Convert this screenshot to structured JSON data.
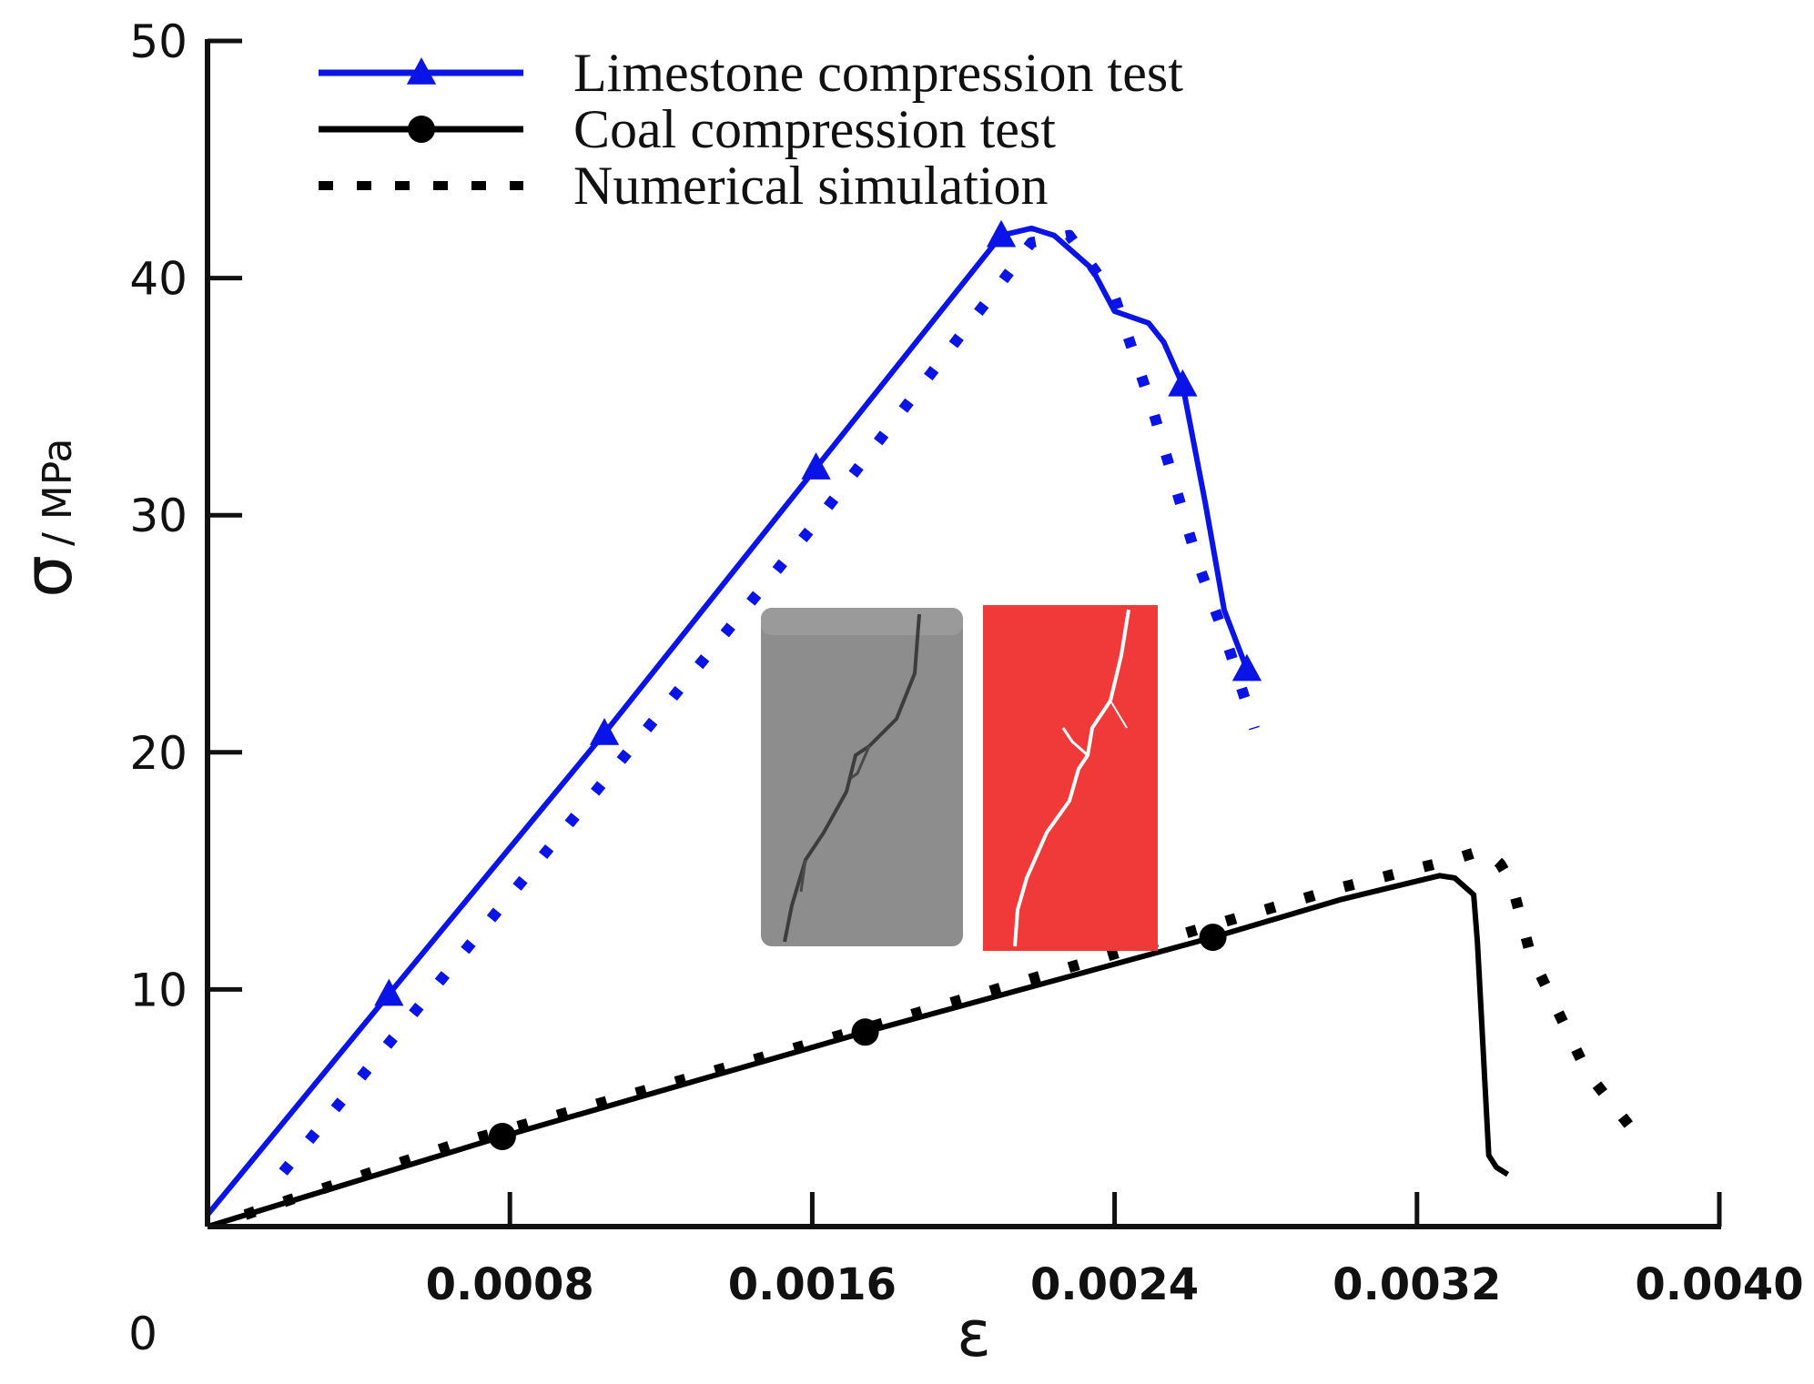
{
  "chart_data": {
    "type": "line",
    "xlabel": "ε",
    "ylabel_symbol": "σ",
    "ylabel_unit": "/ MPa",
    "origin_label": "0",
    "xlim": [
      0,
      0.004
    ],
    "ylim": [
      0,
      50
    ],
    "x_ticks": [
      0.0008,
      0.0016,
      0.0024,
      0.0032,
      0.004
    ],
    "x_tick_labels": [
      "0.0008",
      "0.0016",
      "0.0024",
      "0.0032",
      "0.0040"
    ],
    "y_ticks": [
      10,
      20,
      30,
      40,
      50
    ],
    "y_tick_labels": [
      "10",
      "20",
      "30",
      "40",
      "50"
    ],
    "legend": {
      "position": "top-left",
      "entries": [
        {
          "label": "Limestone compression test",
          "color": "#0a14e6",
          "style": "solid",
          "marker": "triangle"
        },
        {
          "label": "Coal compression test",
          "color": "#000000",
          "style": "solid",
          "marker": "circle"
        },
        {
          "label": "Numerical simulation",
          "color": "#000000",
          "style": "dotted",
          "marker": "none"
        }
      ]
    },
    "series": [
      {
        "name": "Limestone compression test",
        "color": "#0a14e6",
        "style": "solid",
        "marker": "triangle",
        "x": [
          0,
          0.00048,
          0.00105,
          0.00161,
          0.0021,
          0.00218,
          0.00224,
          0.00234,
          0.0024,
          0.00249,
          0.00253,
          0.00258,
          0.00264,
          0.00269,
          0.00275
        ],
        "y": [
          0.5,
          9.8,
          20.8,
          32,
          41.8,
          42.1,
          41.8,
          40.4,
          38.6,
          38.1,
          37.3,
          35.5,
          30.5,
          26,
          23.5
        ],
        "marker_x": [
          0.00048,
          0.00105,
          0.00161,
          0.0021,
          0.00258,
          0.00275
        ],
        "marker_y": [
          9.8,
          20.8,
          32,
          41.8,
          35.5,
          23.5
        ]
      },
      {
        "name": "Limestone numerical simulation",
        "color": "#0a14e6",
        "style": "dotted",
        "marker": "none",
        "x": [
          0.0002,
          0.00105,
          0.0016,
          0.0021,
          0.00218,
          0.00228,
          0.0024,
          0.0025,
          0.00262,
          0.0027,
          0.00277
        ],
        "y": [
          2.3,
          18.8,
          29.5,
          39.8,
          41.5,
          41.8,
          39.2,
          34.5,
          28,
          24.5,
          21
        ],
        "marker_x": [],
        "marker_y": []
      },
      {
        "name": "Coal compression test",
        "color": "#000000",
        "style": "solid",
        "marker": "circle",
        "x": [
          0,
          0.00078,
          0.00174,
          0.00266,
          0.003,
          0.00326,
          0.0033,
          0.00335,
          0.00336,
          0.00337,
          0.00338,
          0.00339,
          0.00341,
          0.00344
        ],
        "y": [
          0,
          3.8,
          8.2,
          12.2,
          13.8,
          14.8,
          14.7,
          14,
          12,
          9,
          6,
          3,
          2.5,
          2.2
        ],
        "marker_x": [
          0.00078,
          0.00174,
          0.00266
        ],
        "marker_y": [
          3.8,
          8.2,
          12.2
        ]
      },
      {
        "name": "Coal numerical simulation",
        "color": "#000000",
        "style": "dotted",
        "marker": "none",
        "x": [
          0.0001,
          0.00066,
          0.00177,
          0.0024,
          0.003,
          0.0033,
          0.00338,
          0.00342,
          0.00345,
          0.0035,
          0.00365,
          0.0038
        ],
        "y": [
          0.5,
          3.5,
          8.5,
          11.5,
          14.3,
          15.5,
          15.9,
          15.3,
          14.5,
          11.5,
          6.5,
          3.5
        ],
        "marker_x": [],
        "marker_y": []
      }
    ]
  },
  "inset": {
    "specimen_photo_color": "#8a8a8a",
    "simulation_color": "#f03a3a",
    "crack_color": "#ffffff"
  }
}
